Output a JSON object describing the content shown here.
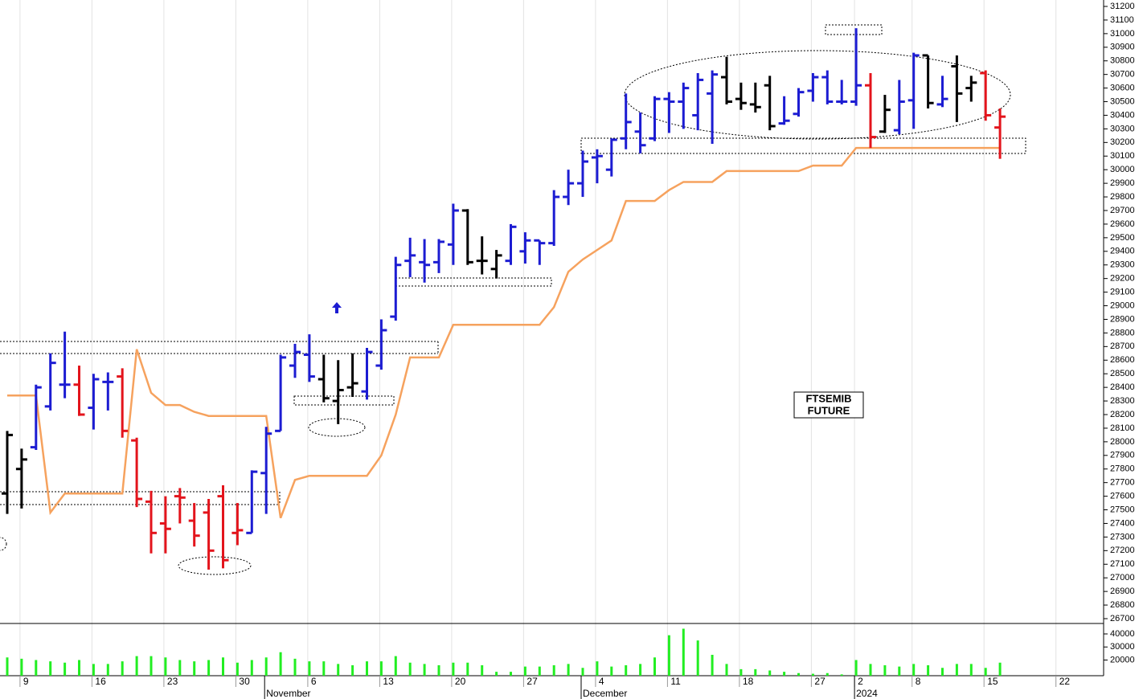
{
  "chart_data": [
    {
      "type": "ohlc",
      "categories": [
        null,
        "9",
        null,
        null,
        null,
        null,
        "16",
        null,
        null,
        null,
        null,
        "23",
        null,
        null,
        null,
        null,
        "30",
        null,
        null,
        null,
        null,
        "6",
        null,
        null,
        null,
        null,
        "13",
        null,
        null,
        null,
        null,
        "20",
        null,
        null,
        null,
        null,
        "27",
        null,
        null,
        null,
        null,
        "4",
        null,
        null,
        null,
        null,
        "11",
        null,
        null,
        null,
        null,
        "18",
        null,
        null,
        null,
        null,
        "27",
        null,
        null,
        "2",
        null,
        null,
        null,
        "8",
        null,
        null,
        null,
        null,
        "15",
        null,
        null,
        null,
        null,
        "22",
        null,
        null,
        null
      ],
      "x_groups": [
        {
          "label": "November",
          "start": 18
        },
        {
          "label": "December",
          "start": 40
        },
        {
          "label": "2024",
          "start": 59
        }
      ],
      "open": [
        27620,
        27800,
        27960,
        28260,
        28420,
        28420,
        28250,
        28440,
        28480,
        28010,
        27560,
        27400,
        27600,
        27420,
        27480,
        27600,
        27330,
        27330,
        27770,
        28080,
        28560,
        28640,
        28460,
        28300,
        28400,
        28370,
        28560,
        28920,
        29330,
        29320,
        29320,
        29450,
        29700,
        29330,
        29270,
        29330,
        29400,
        29480,
        29460,
        29800,
        29900,
        30090,
        30000,
        30230,
        30280,
        30230,
        30520,
        30500,
        30400,
        30560,
        30680,
        30520,
        30480,
        30620,
        30340,
        30410,
        30580,
        30680,
        30500,
        30500,
        30620,
        30280,
        30290,
        30510,
        30840,
        30480,
        30760,
        30600,
        30710,
        30310,
        null,
        null,
        null,
        null,
        null,
        null,
        null
      ],
      "high": [
        28080,
        27950,
        28420,
        28650,
        28810,
        28560,
        28500,
        28510,
        28540,
        28030,
        27640,
        27600,
        27660,
        27550,
        27580,
        27680,
        27550,
        27790,
        28110,
        28640,
        28720,
        28790,
        28640,
        28600,
        28650,
        28690,
        28900,
        29360,
        29500,
        29490,
        29490,
        29750,
        29710,
        29510,
        29410,
        29600,
        29540,
        29480,
        29850,
        30000,
        30140,
        30150,
        30230,
        30560,
        30420,
        30540,
        30570,
        30640,
        30710,
        30730,
        30830,
        30640,
        30640,
        30690,
        30540,
        30600,
        30710,
        30730,
        30660,
        31040,
        30710,
        30550,
        30660,
        30860,
        30840,
        30690,
        30840,
        30690,
        30730,
        30450,
        null,
        null,
        null,
        null,
        null,
        null,
        null
      ],
      "low": [
        27470,
        27510,
        27940,
        28230,
        28320,
        28190,
        28090,
        28230,
        28030,
        27520,
        27180,
        27180,
        27400,
        27230,
        27060,
        27070,
        27240,
        27330,
        27470,
        28080,
        28470,
        28440,
        28290,
        28130,
        28330,
        28310,
        28530,
        28890,
        29210,
        29170,
        29240,
        29300,
        29300,
        29230,
        29200,
        29300,
        29310,
        29300,
        29440,
        29740,
        29800,
        29900,
        29950,
        30150,
        30120,
        30210,
        30270,
        30300,
        30290,
        30190,
        30480,
        30440,
        30420,
        30290,
        30330,
        30390,
        30500,
        30480,
        30480,
        30470,
        30160,
        30270,
        30260,
        30300,
        30450,
        30460,
        30350,
        30500,
        30360,
        30080,
        null,
        null,
        null,
        null,
        null,
        null,
        null
      ],
      "close": [
        28050,
        27870,
        28400,
        28580,
        28420,
        28200,
        28460,
        28440,
        28080,
        27580,
        27330,
        27360,
        27590,
        27310,
        27200,
        27130,
        27350,
        27780,
        28060,
        28620,
        28660,
        28480,
        28320,
        28380,
        28430,
        28660,
        28820,
        29300,
        29370,
        29300,
        29470,
        29700,
        29320,
        29330,
        29370,
        29580,
        29480,
        29460,
        29800,
        29900,
        30060,
        30100,
        30220,
        30350,
        30180,
        30520,
        30500,
        30600,
        30660,
        30700,
        30500,
        30490,
        30460,
        30320,
        30360,
        30570,
        30680,
        30500,
        30500,
        30620,
        30240,
        30440,
        30500,
        30840,
        30490,
        30520,
        30560,
        30640,
        30400,
        30390,
        null,
        null,
        null,
        null,
        null,
        null,
        null
      ],
      "colors": [
        "#000000",
        "#000000",
        "#1c1cd2",
        "#1c1cd2",
        "#1c1cd2",
        "#e3141c",
        "#1c1cd2",
        "#1c1cd2",
        "#e3141c",
        "#e3141c",
        "#e3141c",
        "#e3141c",
        "#e3141c",
        "#e3141c",
        "#e3141c",
        "#e3141c",
        "#e3141c",
        "#1c1cd2",
        "#1c1cd2",
        "#1c1cd2",
        "#1c1cd2",
        "#1c1cd2",
        "#000000",
        "#000000",
        "#000000",
        "#1c1cd2",
        "#1c1cd2",
        "#1c1cd2",
        "#1c1cd2",
        "#1c1cd2",
        "#1c1cd2",
        "#1c1cd2",
        "#000000",
        "#000000",
        "#000000",
        "#1c1cd2",
        "#1c1cd2",
        "#1c1cd2",
        "#1c1cd2",
        "#1c1cd2",
        "#1c1cd2",
        "#1c1cd2",
        "#1c1cd2",
        "#1c1cd2",
        "#1c1cd2",
        "#1c1cd2",
        "#1c1cd2",
        "#1c1cd2",
        "#1c1cd2",
        "#1c1cd2",
        "#000000",
        "#000000",
        "#000000",
        "#000000",
        "#1c1cd2",
        "#1c1cd2",
        "#1c1cd2",
        "#1c1cd2",
        "#1c1cd2",
        "#1c1cd2",
        "#e3141c",
        "#000000",
        "#1c1cd2",
        "#1c1cd2",
        "#000000",
        "#1c1cd2",
        "#000000",
        "#000000",
        "#e3141c",
        "#e3141c",
        null,
        null,
        null,
        null,
        null,
        null,
        null
      ],
      "line": {
        "color": "#f6a25e",
        "values": [
          28340,
          28340,
          28340,
          27480,
          27620,
          27620,
          27620,
          27620,
          27620,
          28680,
          28360,
          28270,
          28270,
          28220,
          28190,
          28190,
          28190,
          28190,
          28190,
          27440,
          27720,
          27750,
          27750,
          27750,
          27750,
          27750,
          27900,
          28200,
          28620,
          28620,
          28620,
          28860,
          28860,
          28860,
          28860,
          28860,
          28860,
          28860,
          28990,
          29250,
          29340,
          29410,
          29480,
          29770,
          29770,
          29770,
          29850,
          29910,
          29910,
          29910,
          29990,
          29990,
          29990,
          29990,
          29990,
          29990,
          30030,
          30030,
          30030,
          30160,
          30160,
          30160,
          30160,
          30160,
          30160,
          30160,
          30160,
          30160,
          30160,
          30160,
          null,
          null,
          null,
          null,
          null,
          null,
          null
        ]
      },
      "annotation": [
        "FTSEMIB",
        "FUTURE"
      ],
      "ylim": [
        26700,
        31200
      ],
      "yticks": [
        26700,
        26800,
        26900,
        27000,
        27100,
        27200,
        27300,
        27400,
        27500,
        27600,
        27700,
        27800,
        27900,
        28000,
        28100,
        28200,
        28300,
        28400,
        28500,
        28600,
        28700,
        28800,
        28900,
        29000,
        29100,
        29200,
        29300,
        29400,
        29500,
        29600,
        29700,
        29800,
        29900,
        30000,
        30100,
        30200,
        30300,
        30400,
        30500,
        30600,
        30700,
        30800,
        30900,
        31000,
        31100,
        31200
      ]
    },
    {
      "type": "bar",
      "color": "#22ee22",
      "values": [
        22000,
        21000,
        20000,
        19000,
        18000,
        20000,
        17000,
        17000,
        19000,
        23000,
        23000,
        22000,
        20000,
        19000,
        20000,
        22000,
        18000,
        20000,
        22000,
        26000,
        21000,
        19000,
        19000,
        17000,
        16000,
        19000,
        19000,
        23000,
        18000,
        17000,
        16000,
        18000,
        18000,
        16000,
        11000,
        11000,
        15000,
        15000,
        16000,
        17000,
        14000,
        19000,
        15000,
        16000,
        17000,
        22000,
        39000,
        44000,
        35000,
        24000,
        17000,
        13000,
        13000,
        12000,
        11000,
        10000,
        9500,
        10000,
        9000,
        20000,
        17000,
        16000,
        15000,
        17000,
        16000,
        14000,
        17000,
        17000,
        14000,
        18000,
        null,
        null,
        null,
        null,
        null,
        null,
        null
      ],
      "ylim": [
        8000,
        48000
      ],
      "yticks": [
        20000,
        30000,
        40000
      ]
    }
  ]
}
